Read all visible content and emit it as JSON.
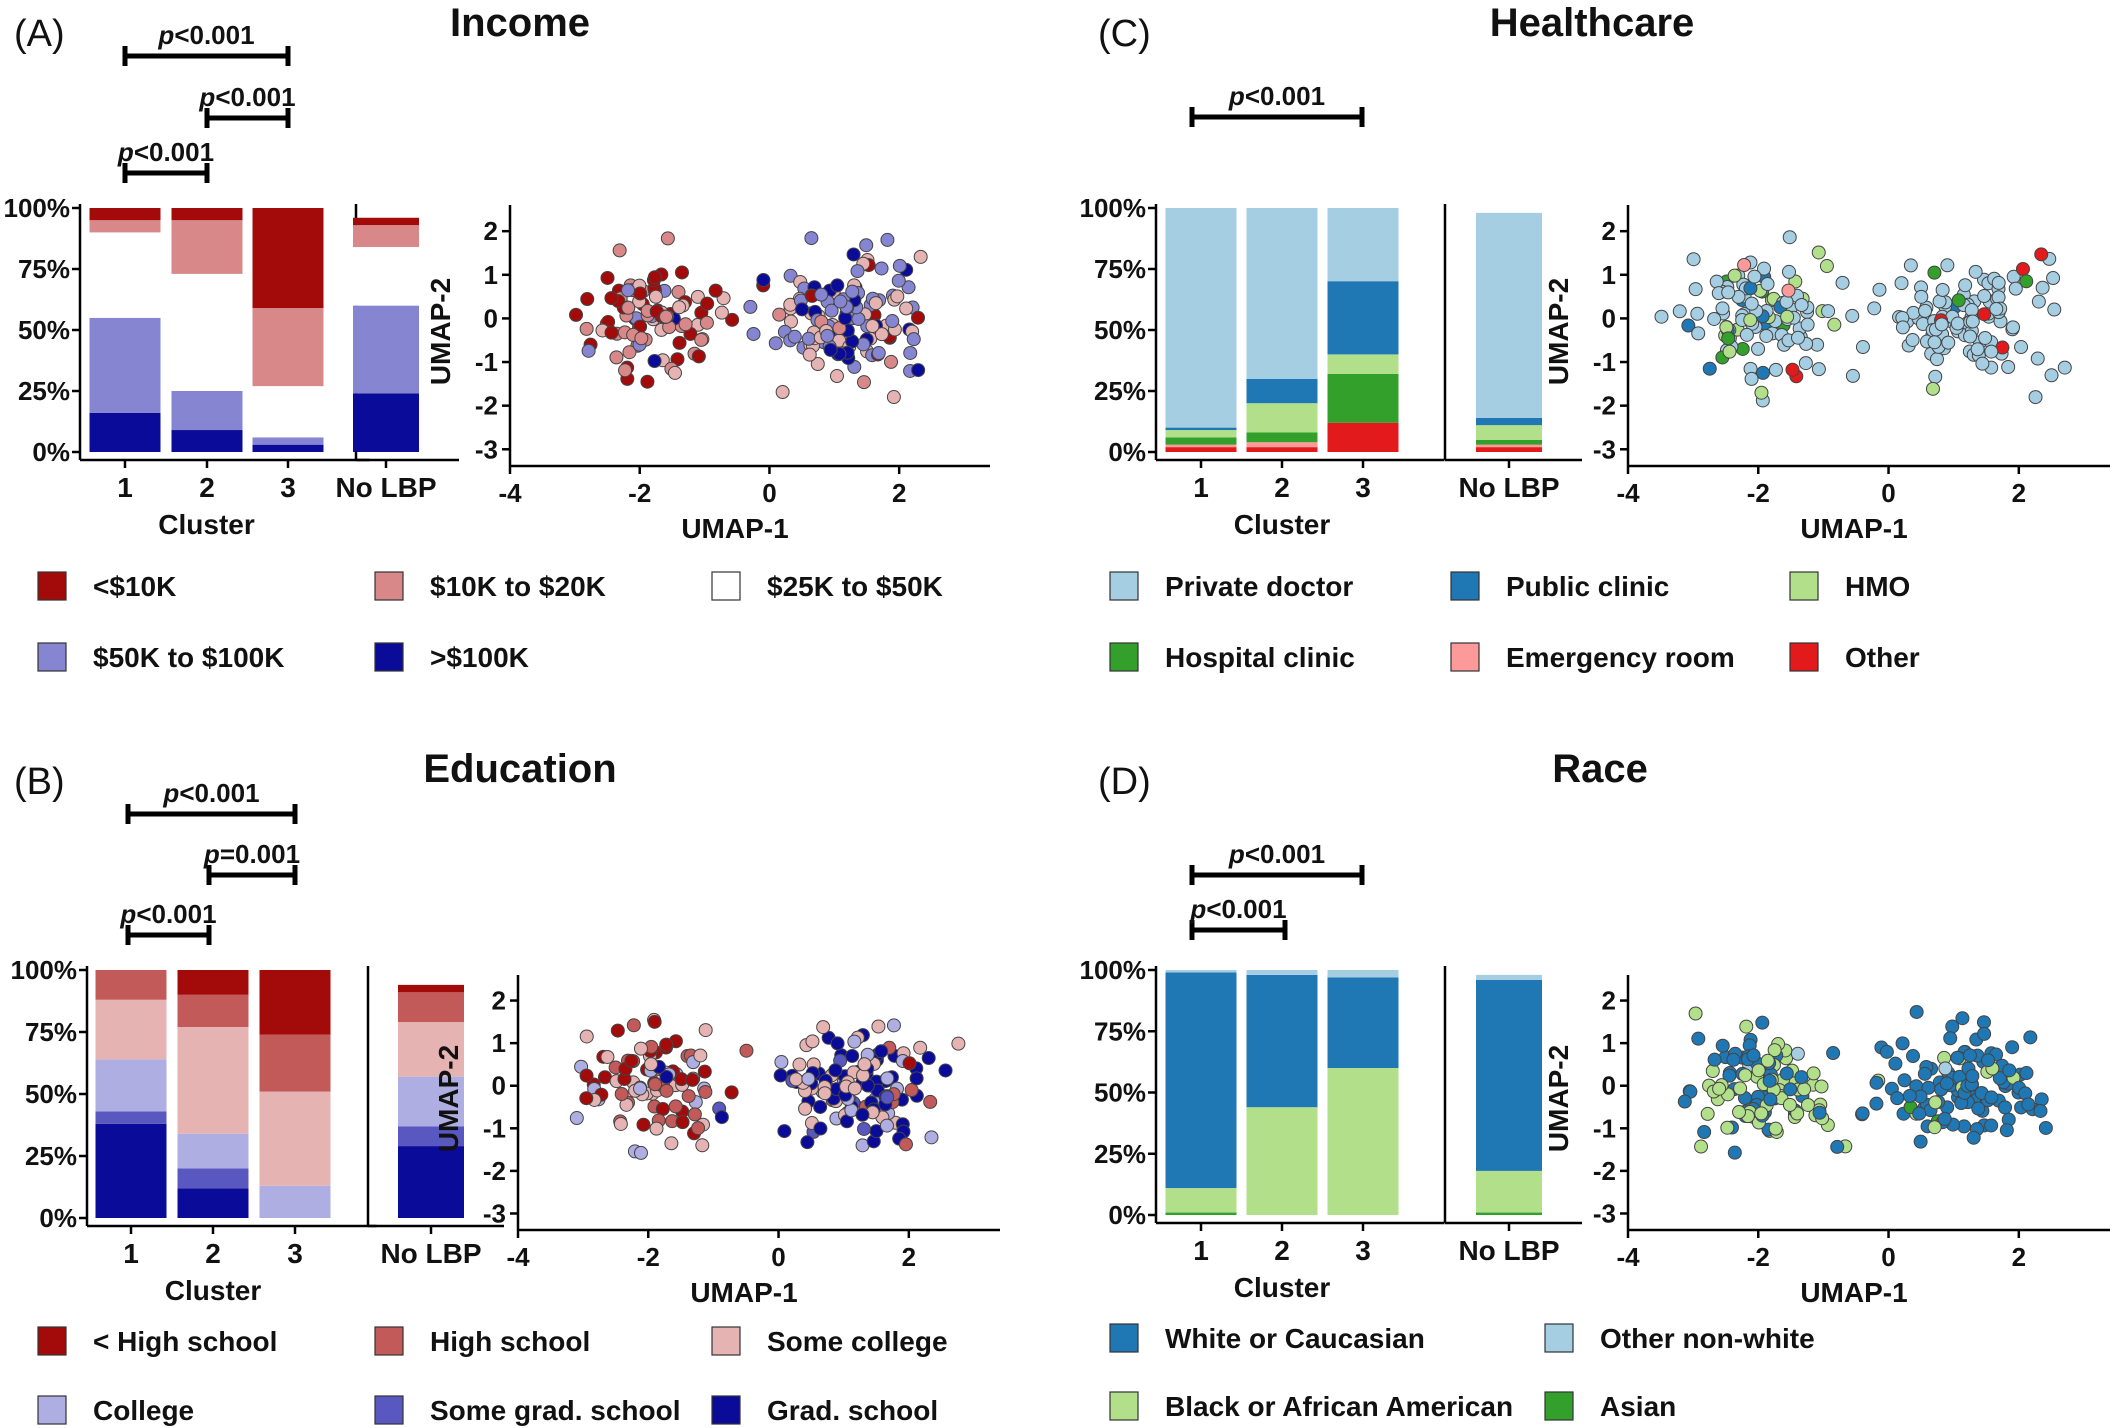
{
  "chart_data": [
    {
      "id": "A",
      "panel_label": "(A)",
      "title": "Income",
      "type": "bar",
      "stacked": true,
      "ylim": [
        0,
        100
      ],
      "y_ticks": [
        "0%",
        "25%",
        "50%",
        "75%",
        "100%"
      ],
      "categories": [
        "1",
        "2",
        "3"
      ],
      "xlabel": "Cluster",
      "reference_category": "No LBP",
      "series": [
        {
          "name": ">$100K",
          "color": "#0b0b99",
          "values": [
            16,
            9,
            3
          ],
          "reference": 24
        },
        {
          "name": "$50K to $100K",
          "color": "#8585d2",
          "values": [
            39,
            16,
            3
          ],
          "reference": 36
        },
        {
          "name": "$25K to $50K",
          "color": "#ffffff",
          "values": [
            35,
            48,
            21
          ],
          "reference": 24
        },
        {
          "name": "$10K to $20K",
          "color": "#d88888",
          "values": [
            5,
            22,
            32
          ],
          "reference": 9
        },
        {
          "name": "<$10K",
          "color": "#a30b0b",
          "values": [
            5,
            5,
            41
          ],
          "reference": 3
        }
      ],
      "brackets": [
        {
          "from": "1",
          "to": "3",
          "label": "p<0.001"
        },
        {
          "from": "2",
          "to": "3",
          "label": "p<0.001"
        },
        {
          "from": "1",
          "to": "2",
          "label": "p<0.001"
        }
      ],
      "legend": [
        "<$10K",
        "$10K to $20K",
        "$25K to $50K",
        "$50K to $100K",
        ">$100K"
      ],
      "scatter": {
        "xlabel": "UMAP-1",
        "ylabel": "UMAP-2",
        "xlim": [
          -4,
          3.4
        ],
        "ylim": [
          -3.2,
          2.6
        ],
        "x_ticks": [
          "-4",
          "-2",
          "0",
          "2"
        ],
        "y_ticks": [
          "-3",
          "-2",
          "-1",
          "0",
          "1",
          "2"
        ]
      }
    },
    {
      "id": "B",
      "panel_label": "(B)",
      "title": "Education",
      "type": "bar",
      "stacked": true,
      "ylim": [
        0,
        100
      ],
      "y_ticks": [
        "0%",
        "25%",
        "50%",
        "75%",
        "100%"
      ],
      "categories": [
        "1",
        "2",
        "3"
      ],
      "xlabel": "Cluster",
      "reference_category": "No LBP",
      "series": [
        {
          "name": "Grad. school",
          "color": "#0b0b99",
          "values": [
            38,
            12,
            0
          ],
          "reference": 29
        },
        {
          "name": "Some grad. school",
          "color": "#5858c0",
          "values": [
            5,
            8,
            0
          ],
          "reference": 8
        },
        {
          "name": "College",
          "color": "#aeaee2",
          "values": [
            21,
            14,
            13
          ],
          "reference": 20
        },
        {
          "name": "Some college",
          "color": "#e6b3b3",
          "values": [
            24,
            43,
            38
          ],
          "reference": 22
        },
        {
          "name": "High school",
          "color": "#c25a5a",
          "values": [
            12,
            13,
            23
          ],
          "reference": 12
        },
        {
          "name": "< High school",
          "color": "#a30b0b",
          "values": [
            0,
            10,
            26
          ],
          "reference": 3
        }
      ],
      "brackets": [
        {
          "from": "1",
          "to": "3",
          "label": "p<0.001"
        },
        {
          "from": "2",
          "to": "3",
          "label": "p=0.001"
        },
        {
          "from": "1",
          "to": "2",
          "label": "p<0.001"
        }
      ],
      "legend": [
        "< High school",
        "High school",
        "Some college",
        "College",
        "Some grad. school",
        "Grad. school"
      ],
      "scatter": {
        "xlabel": "UMAP-1",
        "ylabel": "UMAP-2",
        "xlim": [
          -4,
          3.4
        ],
        "ylim": [
          -3.2,
          2.6
        ],
        "x_ticks": [
          "-4",
          "-2",
          "0",
          "2"
        ],
        "y_ticks": [
          "-3",
          "-2",
          "-1",
          "0",
          "1",
          "2"
        ]
      }
    },
    {
      "id": "C",
      "panel_label": "(C)",
      "title": "Healthcare",
      "type": "bar",
      "stacked": true,
      "ylim": [
        0,
        100
      ],
      "y_ticks": [
        "0%",
        "25%",
        "50%",
        "75%",
        "100%"
      ],
      "categories": [
        "1",
        "2",
        "3"
      ],
      "xlabel": "Cluster",
      "reference_category": "No LBP",
      "series": [
        {
          "name": "Other",
          "color": "#e31a1c",
          "values": [
            2,
            2,
            12
          ],
          "reference": 2
        },
        {
          "name": "Emergency room",
          "color": "#fb9a99",
          "values": [
            1,
            2,
            0
          ],
          "reference": 1
        },
        {
          "name": "Hospital clinic",
          "color": "#33a02c",
          "values": [
            3,
            4,
            20
          ],
          "reference": 2
        },
        {
          "name": "HMO",
          "color": "#b2df8a",
          "values": [
            3,
            12,
            8
          ],
          "reference": 6
        },
        {
          "name": "Public clinic",
          "color": "#1f78b4",
          "values": [
            1,
            10,
            30
          ],
          "reference": 3
        },
        {
          "name": "Private doctor",
          "color": "#a6cee3",
          "values": [
            90,
            70,
            30
          ],
          "reference": 84
        }
      ],
      "brackets": [
        {
          "from": "1",
          "to": "3",
          "label": "p<0.001"
        }
      ],
      "legend": [
        "Private doctor",
        "Public clinic",
        "HMO",
        "Hospital clinic",
        "Emergency room",
        "Other"
      ],
      "scatter": {
        "xlabel": "UMAP-1",
        "ylabel": "UMAP-2",
        "xlim": [
          -4,
          3.4
        ],
        "ylim": [
          -3.2,
          2.6
        ],
        "x_ticks": [
          "-4",
          "-2",
          "0",
          "2"
        ],
        "y_ticks": [
          "-3",
          "-2",
          "-1",
          "0",
          "1",
          "2"
        ]
      }
    },
    {
      "id": "D",
      "panel_label": "(D)",
      "title": "Race",
      "type": "bar",
      "stacked": true,
      "ylim": [
        0,
        100
      ],
      "y_ticks": [
        "0%",
        "25%",
        "50%",
        "75%",
        "100%"
      ],
      "categories": [
        "1",
        "2",
        "3"
      ],
      "xlabel": "Cluster",
      "reference_category": "No LBP",
      "series": [
        {
          "name": "Asian",
          "color": "#33a02c",
          "values": [
            1,
            0,
            0
          ],
          "reference": 1
        },
        {
          "name": "Black or African American",
          "color": "#b2df8a",
          "values": [
            10,
            44,
            60
          ],
          "reference": 17
        },
        {
          "name": "White or Caucasian",
          "color": "#1f78b4",
          "values": [
            88,
            54,
            37
          ],
          "reference": 78
        },
        {
          "name": "Other non-white",
          "color": "#a6cee3",
          "values": [
            1,
            2,
            3
          ],
          "reference": 2
        }
      ],
      "brackets": [
        {
          "from": "1",
          "to": "3",
          "label": "p<0.001"
        },
        {
          "from": "1",
          "to": "2",
          "label": "p<0.001"
        }
      ],
      "legend": [
        "White or Caucasian",
        "Other non-white",
        "Black or African American",
        "Asian"
      ],
      "scatter": {
        "xlabel": "UMAP-1",
        "ylabel": "UMAP-2",
        "xlim": [
          -4,
          3.4
        ],
        "ylim": [
          -3.2,
          2.6
        ],
        "x_ticks": [
          "-4",
          "-2",
          "0",
          "2"
        ],
        "y_ticks": [
          "-3",
          "-2",
          "-1",
          "0",
          "1",
          "2"
        ]
      }
    }
  ]
}
